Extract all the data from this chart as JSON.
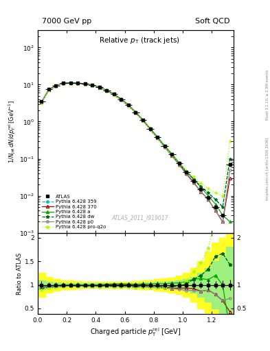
{
  "title_left": "7000 GeV pp",
  "title_right": "Soft QCD",
  "plot_title": "Relative p_{T} (track jets)",
  "xlabel": "Charged particle p_{T}^{rel} [GeV]",
  "ylabel": "1/N_{jet} dN/dp_{T}^{rel} [GeV^{-1}]",
  "ratio_ylabel": "Ratio to ATLAS",
  "watermark": "ATLAS_2011_I919017",
  "side_text": "mcplots.cern.ch [arXiv:1306.3436]",
  "side_text2": "Rivet 3.1.10, ≥ 2.9M events",
  "x_data": [
    0.025,
    0.075,
    0.125,
    0.175,
    0.225,
    0.275,
    0.325,
    0.375,
    0.425,
    0.475,
    0.525,
    0.575,
    0.625,
    0.675,
    0.725,
    0.775,
    0.825,
    0.875,
    0.925,
    0.975,
    1.025,
    1.075,
    1.125,
    1.175,
    1.225,
    1.275,
    1.325
  ],
  "atlas_y": [
    3.5,
    7.5,
    9.5,
    11.0,
    11.2,
    11.0,
    10.5,
    9.8,
    8.5,
    7.0,
    5.5,
    4.0,
    2.8,
    1.8,
    1.1,
    0.65,
    0.38,
    0.22,
    0.13,
    0.075,
    0.043,
    0.025,
    0.015,
    0.009,
    0.005,
    0.003,
    0.07
  ],
  "atlas_yerr": [
    0.3,
    0.4,
    0.5,
    0.5,
    0.5,
    0.5,
    0.4,
    0.4,
    0.3,
    0.3,
    0.2,
    0.2,
    0.15,
    0.1,
    0.07,
    0.04,
    0.025,
    0.015,
    0.009,
    0.005,
    0.003,
    0.002,
    0.001,
    0.001,
    0.0004,
    0.0003,
    0.008
  ],
  "py359_y": [
    3.2,
    7.2,
    9.2,
    10.8,
    11.0,
    10.8,
    10.3,
    9.6,
    8.3,
    6.9,
    5.4,
    3.9,
    2.75,
    1.75,
    1.08,
    0.63,
    0.37,
    0.21,
    0.125,
    0.073,
    0.044,
    0.028,
    0.018,
    0.012,
    0.008,
    0.005,
    0.1
  ],
  "py370_y": [
    3.3,
    7.3,
    9.3,
    10.9,
    11.1,
    10.9,
    10.4,
    9.7,
    8.4,
    7.0,
    5.5,
    4.0,
    2.8,
    1.78,
    1.1,
    0.64,
    0.37,
    0.21,
    0.12,
    0.07,
    0.04,
    0.023,
    0.013,
    0.008,
    0.004,
    0.002,
    0.03
  ],
  "pya_y": [
    3.4,
    7.4,
    9.4,
    11.0,
    11.2,
    11.0,
    10.5,
    9.8,
    8.5,
    7.1,
    5.6,
    4.1,
    2.85,
    1.82,
    1.12,
    0.66,
    0.39,
    0.225,
    0.135,
    0.078,
    0.046,
    0.028,
    0.017,
    0.01,
    0.006,
    0.003,
    0.002
  ],
  "pydw_y": [
    3.2,
    7.1,
    9.1,
    10.7,
    10.9,
    10.7,
    10.2,
    9.5,
    8.2,
    6.8,
    5.3,
    3.85,
    2.7,
    1.72,
    1.06,
    0.62,
    0.36,
    0.21,
    0.125,
    0.073,
    0.044,
    0.028,
    0.018,
    0.012,
    0.008,
    0.005,
    0.1
  ],
  "pyp0_y": [
    3.3,
    7.2,
    9.2,
    10.8,
    11.0,
    10.8,
    10.3,
    9.6,
    8.3,
    6.9,
    5.4,
    3.9,
    2.75,
    1.75,
    1.07,
    0.62,
    0.36,
    0.205,
    0.12,
    0.068,
    0.038,
    0.022,
    0.013,
    0.008,
    0.004,
    0.002,
    0.05
  ],
  "pyproq2o_y": [
    3.1,
    7.0,
    9.0,
    10.6,
    10.8,
    10.6,
    10.1,
    9.4,
    8.1,
    6.7,
    5.2,
    3.8,
    2.65,
    1.68,
    1.04,
    0.61,
    0.36,
    0.21,
    0.127,
    0.076,
    0.047,
    0.032,
    0.022,
    0.016,
    0.012,
    0.01,
    0.3
  ],
  "yellow_band_half": [
    0.25,
    0.17,
    0.12,
    0.1,
    0.09,
    0.08,
    0.07,
    0.07,
    0.06,
    0.06,
    0.06,
    0.07,
    0.07,
    0.08,
    0.09,
    0.1,
    0.12,
    0.14,
    0.16,
    0.2,
    0.25,
    0.35,
    0.5,
    0.7,
    0.9,
    1.0,
    1.5
  ],
  "green_band_half": [
    0.1,
    0.07,
    0.05,
    0.04,
    0.04,
    0.04,
    0.03,
    0.03,
    0.03,
    0.03,
    0.03,
    0.035,
    0.035,
    0.04,
    0.045,
    0.05,
    0.06,
    0.07,
    0.08,
    0.1,
    0.12,
    0.17,
    0.25,
    0.35,
    0.5,
    0.6,
    0.8
  ],
  "color_atlas": "#000000",
  "color_359": "#00BFBF",
  "color_370": "#AA0000",
  "color_a": "#00AA00",
  "color_dw": "#006600",
  "color_p0": "#888888",
  "color_proq2o": "#AAFF00",
  "xlim": [
    0.0,
    1.35
  ],
  "ylim_main": [
    0.001,
    300.0
  ],
  "ylim_ratio": [
    0.38,
    2.1
  ]
}
